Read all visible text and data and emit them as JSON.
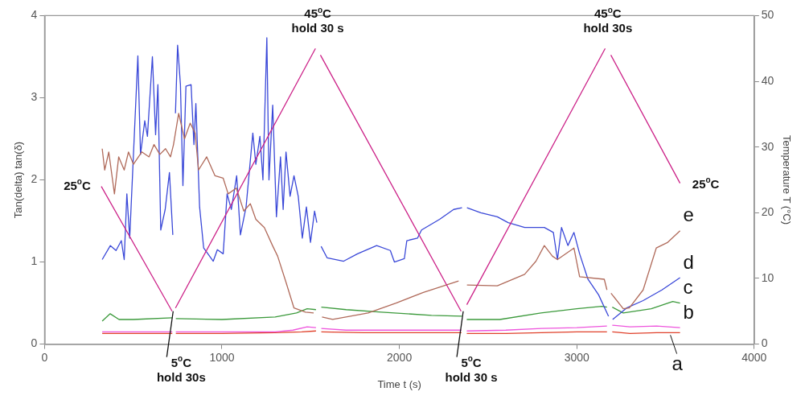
{
  "chart_data": {
    "type": "line",
    "xlabel": "Time t (s)",
    "ylabel": "Tan(delta) tan(δ)",
    "y2label": "Temperature T (°C)",
    "xlim": [
      0,
      4000
    ],
    "xticks": [
      0,
      1000,
      2000,
      3000,
      4000
    ],
    "ylim": [
      0,
      4
    ],
    "yticks": [
      0,
      1,
      2,
      3,
      4
    ],
    "y2lim": [
      0,
      50
    ],
    "y2ticks": [
      0,
      10,
      20,
      30,
      40,
      50
    ],
    "grid": false,
    "legend": false,
    "marker": "none",
    "line_style": "solid",
    "annotations": [
      {
        "text": "25$^{o}$C",
        "x": 320,
        "y": 1.92
      },
      {
        "text": "5$^{o}$C\nhold 30s",
        "x": 725,
        "y": 0.4
      },
      {
        "text": "45$^{o}$C\nhold 30 s",
        "x": 1540,
        "y": 3.6
      },
      {
        "text": "5$^{o}$C\nhold 30 s",
        "x": 2360,
        "y": 0.4
      },
      {
        "text": "45$^{o}$C\nhold 30s",
        "x": 3175,
        "y": 3.6
      },
      {
        "text": "25$^{o}$C",
        "x": 3582,
        "y": 1.96
      }
    ],
    "series": [
      {
        "name": "a",
        "color": "#e0402a",
        "x": [
          325,
          500,
          720,
          730,
          740,
          1000,
          1300,
          1450,
          1530,
          1545,
          1560,
          1800,
          2100,
          2350,
          2365,
          2380,
          2600,
          2800,
          3000,
          3170,
          3185,
          3200,
          3300,
          3450,
          3582
        ],
        "values": [
          0.13,
          0.13,
          0.13,
          null,
          0.13,
          0.13,
          0.14,
          0.15,
          0.16,
          null,
          0.15,
          0.14,
          0.14,
          0.14,
          null,
          0.13,
          0.13,
          0.14,
          0.15,
          0.15,
          null,
          0.15,
          0.13,
          0.14,
          0.14
        ]
      },
      {
        "name": "b",
        "color": "#ee55dd",
        "x": [
          325,
          500,
          720,
          730,
          740,
          1000,
          1300,
          1400,
          1480,
          1530,
          1545,
          1560,
          1700,
          2000,
          2350,
          2365,
          2380,
          2600,
          2800,
          3000,
          3170,
          3185,
          3200,
          3300,
          3450,
          3582
        ],
        "values": [
          0.15,
          0.15,
          0.15,
          null,
          0.15,
          0.15,
          0.15,
          0.17,
          0.21,
          0.2,
          null,
          0.19,
          0.17,
          0.17,
          0.17,
          null,
          0.16,
          0.17,
          0.19,
          0.2,
          0.22,
          null,
          0.23,
          0.21,
          0.22,
          0.2
        ]
      },
      {
        "name": "c",
        "color": "#3c9a3c",
        "x": [
          325,
          370,
          420,
          500,
          720,
          730,
          740,
          1000,
          1300,
          1420,
          1480,
          1530,
          1545,
          1560,
          1700,
          1900,
          2181,
          2353,
          2365,
          2380,
          2566,
          2798,
          3000,
          3141,
          3170,
          3185,
          3200,
          3262,
          3420,
          3541,
          3582
        ],
        "values": [
          0.28,
          0.37,
          0.3,
          0.3,
          0.32,
          null,
          0.31,
          0.3,
          0.33,
          0.38,
          0.43,
          0.42,
          null,
          0.45,
          0.42,
          0.39,
          0.35,
          0.34,
          null,
          0.3,
          0.3,
          0.38,
          0.43,
          0.46,
          0.45,
          null,
          0.45,
          0.38,
          0.43,
          0.52,
          0.5
        ]
      },
      {
        "name": "d",
        "color": "#3a48d8",
        "x": [
          325,
          371,
          403,
          433,
          449,
          464,
          480,
          526,
          541,
          565,
          580,
          608,
          626,
          639,
          655,
          680,
          704,
          723,
          730,
          738,
          750,
          766,
          780,
          797,
          826,
          842,
          853,
          874,
          897,
          951,
          974,
          1007,
          1029,
          1053,
          1083,
          1104,
          1136,
          1174,
          1191,
          1214,
          1231,
          1253,
          1265,
          1286,
          1307,
          1330,
          1345,
          1361,
          1384,
          1406,
          1430,
          1453,
          1476,
          1499,
          1522,
          1535,
          1545,
          1559,
          1593,
          1686,
          1764,
          1872,
          1949,
          1972,
          2028,
          2042,
          2102,
          2125,
          2227,
          2306,
          2353,
          2365,
          2381,
          2459,
          2552,
          2613,
          2706,
          2817,
          2868,
          2891,
          2914,
          2950,
          2984,
          3016,
          3063,
          3123,
          3179,
          3190,
          3202,
          3281,
          3374,
          3480,
          3582
        ],
        "values": [
          1.03,
          1.2,
          1.14,
          1.26,
          1.03,
          1.83,
          1.29,
          3.51,
          2.31,
          2.72,
          2.53,
          3.5,
          2.55,
          3.16,
          1.39,
          1.64,
          2.09,
          1.33,
          null,
          2.81,
          3.64,
          3.16,
          1.93,
          3.14,
          3.16,
          2.43,
          2.93,
          1.67,
          1.17,
          1.01,
          1.15,
          1.1,
          1.83,
          1.64,
          2.05,
          1.33,
          1.67,
          2.57,
          2.19,
          2.53,
          2.0,
          3.73,
          2.0,
          2.91,
          1.55,
          2.28,
          1.64,
          2.34,
          1.8,
          2.05,
          1.8,
          1.29,
          1.67,
          1.24,
          1.62,
          1.48,
          null,
          1.19,
          1.05,
          1.01,
          1.1,
          1.2,
          1.14,
          1.0,
          1.04,
          1.26,
          1.29,
          1.39,
          1.52,
          1.64,
          1.66,
          null,
          1.66,
          1.6,
          1.55,
          1.48,
          1.42,
          1.42,
          1.36,
          1.03,
          1.42,
          1.2,
          1.36,
          1.1,
          0.79,
          0.6,
          0.34,
          null,
          0.3,
          0.44,
          0.53,
          0.66,
          0.81
        ]
      },
      {
        "name": "e",
        "color": "#b06a5a",
        "x": [
          325,
          339,
          362,
          394,
          418,
          449,
          473,
          501,
          548,
          589,
          617,
          650,
          682,
          710,
          727,
          756,
          789,
          821,
          849,
          868,
          914,
          961,
          1007,
          1035,
          1081,
          1123,
          1160,
          1191,
          1239,
          1285,
          1314,
          1360,
          1406,
          1471,
          1517,
          1540,
          1564,
          1624,
          1824,
          1981,
          2135,
          2334,
          2360,
          2381,
          2552,
          2706,
          2770,
          2817,
          2863,
          2891,
          2984,
          3016,
          3155,
          3170,
          3182,
          3193,
          3262,
          3296,
          3374,
          3448,
          3513,
          3582
        ],
        "values": [
          2.38,
          2.12,
          2.34,
          1.83,
          2.28,
          2.12,
          2.34,
          2.19,
          2.34,
          2.28,
          2.43,
          2.31,
          2.38,
          2.28,
          2.43,
          2.81,
          2.5,
          2.69,
          2.57,
          2.12,
          2.28,
          2.05,
          2.02,
          1.83,
          1.9,
          1.62,
          1.71,
          1.52,
          1.42,
          1.2,
          1.07,
          0.76,
          0.44,
          0.39,
          0.38,
          null,
          0.33,
          0.3,
          0.38,
          0.5,
          0.63,
          0.77,
          null,
          0.72,
          0.71,
          0.85,
          1.01,
          1.2,
          1.07,
          1.03,
          1.17,
          0.82,
          0.79,
          0.66,
          null,
          0.62,
          0.43,
          0.44,
          0.66,
          1.17,
          1.24,
          1.38
        ]
      },
      {
        "color": "#cc2288",
        "axis": "y2",
        "x": [
          320,
          719,
          728,
          738,
          1527,
          1541,
          1555,
          2348,
          2364,
          2380,
          3160,
          3176,
          3192,
          3582
        ],
        "values": [
          24,
          5,
          null,
          5.5,
          45,
          null,
          44,
          5,
          null,
          6,
          45,
          null,
          44,
          24.5
        ]
      }
    ]
  }
}
